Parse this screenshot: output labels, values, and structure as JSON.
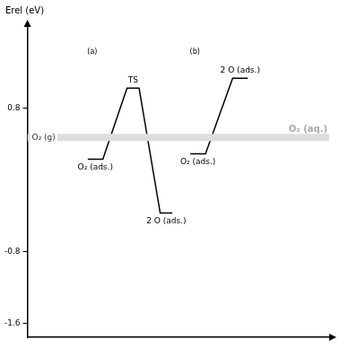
{
  "chart_data": {
    "type": "line",
    "y_label": "Erel (eV)",
    "ylim": [
      -1.75,
      1.7
    ],
    "yticks": [
      0.8,
      -0.8,
      -1.6
    ],
    "xlim": [
      0,
      100
    ],
    "tick_labels": "y",
    "grid": false,
    "color": "#000000",
    "reference": {
      "y": 0.47,
      "labels": [
        "O₂ (g)",
        "O₂ (aq.)"
      ],
      "colors": [
        "#333333",
        "#aaaaaa"
      ]
    },
    "panels": [
      {
        "label": "(a)",
        "levels": [
          {
            "label": "O₂ (ads.)",
            "x": [
              20,
              25
            ],
            "y": 0.23
          },
          {
            "label": "TS",
            "x": [
              33,
              37
            ],
            "y": 1.02
          },
          {
            "label": "2 O (ads.)",
            "x": [
              44,
              48
            ],
            "y": -0.37
          }
        ]
      },
      {
        "label": "(b)",
        "levels": [
          {
            "label": "O₂ (ads.)",
            "x": [
              54,
              59
            ],
            "y": 0.29
          },
          {
            "label": "2 O (ads.)",
            "x": [
              68,
              73
            ],
            "y": 1.13
          }
        ]
      }
    ]
  }
}
